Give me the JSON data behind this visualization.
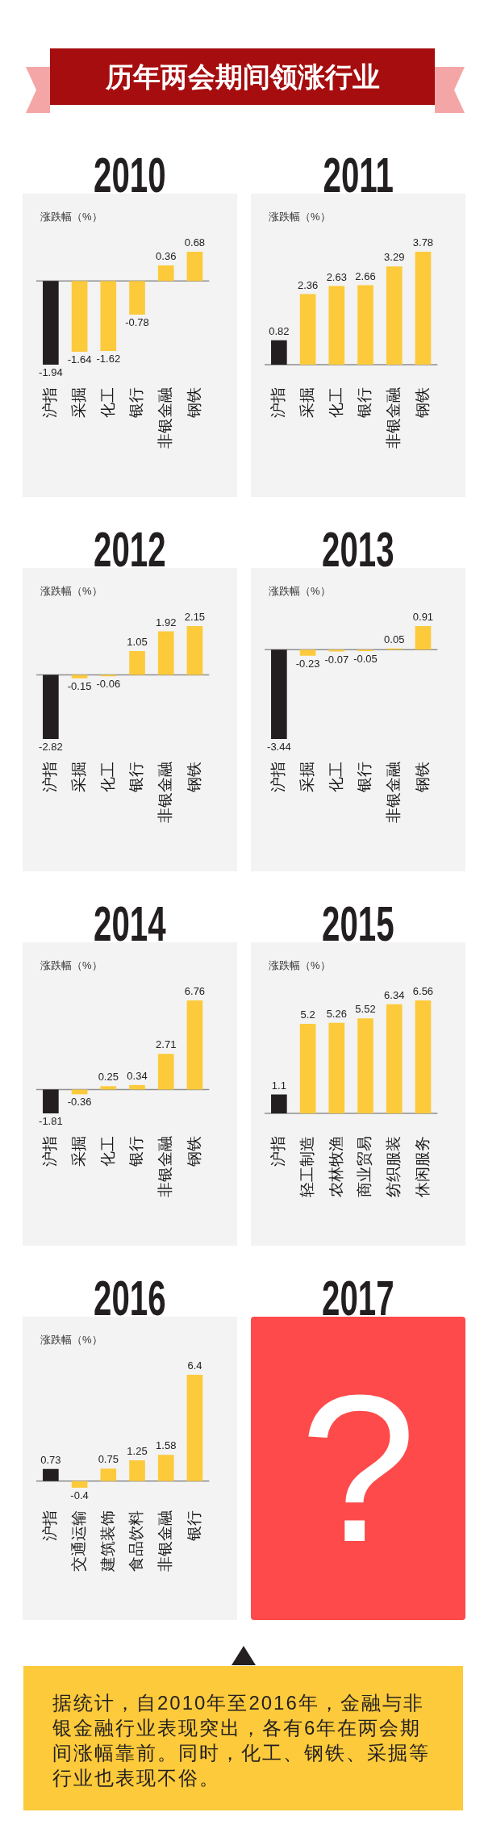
{
  "chart_data": [
    {
      "type": "other",
      "title": "历年两会期间领涨行业"
    },
    {
      "type": "bar",
      "title": "2010",
      "ylabel": "涨跌幅（%）",
      "categories": [
        "沪指",
        "采掘",
        "化工",
        "银行",
        "非银金融",
        "钢铁"
      ],
      "values": [
        -1.94,
        -1.64,
        -1.62,
        -0.78,
        0.36,
        0.68
      ],
      "colors": [
        "#231f20",
        "#fcca3a",
        "#fcca3a",
        "#fcca3a",
        "#fcca3a",
        "#fcca3a"
      ],
      "data_labels": true
    },
    {
      "type": "bar",
      "title": "2011",
      "ylabel": "涨跌幅（%）",
      "categories": [
        "沪指",
        "采掘",
        "化工",
        "银行",
        "非银金融",
        "钢铁"
      ],
      "values": [
        0.82,
        2.36,
        2.63,
        2.66,
        3.29,
        3.78
      ],
      "colors": [
        "#231f20",
        "#fcca3a",
        "#fcca3a",
        "#fcca3a",
        "#fcca3a",
        "#fcca3a"
      ],
      "data_labels": true
    },
    {
      "type": "bar",
      "title": "2012",
      "ylabel": "涨跌幅（%）",
      "categories": [
        "沪指",
        "采掘",
        "化工",
        "银行",
        "非银金融",
        "钢铁"
      ],
      "values": [
        -2.82,
        -0.15,
        -0.06,
        1.05,
        1.92,
        2.15
      ],
      "colors": [
        "#231f20",
        "#fcca3a",
        "#fcca3a",
        "#fcca3a",
        "#fcca3a",
        "#fcca3a"
      ],
      "data_labels": true
    },
    {
      "type": "bar",
      "title": "2013",
      "ylabel": "涨跌幅（%）",
      "categories": [
        "沪指",
        "采掘",
        "化工",
        "银行",
        "非银金融",
        "钢铁"
      ],
      "values": [
        -3.44,
        -0.23,
        -0.07,
        -0.05,
        0.05,
        0.91
      ],
      "colors": [
        "#231f20",
        "#fcca3a",
        "#fcca3a",
        "#fcca3a",
        "#fcca3a",
        "#fcca3a"
      ],
      "data_labels": true
    },
    {
      "type": "bar",
      "title": "2014",
      "ylabel": "涨跌幅（%）",
      "categories": [
        "沪指",
        "采掘",
        "化工",
        "银行",
        "非银金融",
        "钢铁"
      ],
      "values": [
        -1.81,
        -0.36,
        0.25,
        0.34,
        2.71,
        6.76
      ],
      "colors": [
        "#231f20",
        "#fcca3a",
        "#fcca3a",
        "#fcca3a",
        "#fcca3a",
        "#fcca3a"
      ],
      "data_labels": true
    },
    {
      "type": "bar",
      "title": "2015",
      "ylabel": "涨跌幅（%）",
      "categories": [
        "沪指",
        "轻工制造",
        "农林牧渔",
        "商业贸易",
        "纺织服装",
        "休闲服务"
      ],
      "values": [
        1.1,
        5.2,
        5.26,
        5.52,
        6.34,
        6.56
      ],
      "colors": [
        "#231f20",
        "#fcca3a",
        "#fcca3a",
        "#fcca3a",
        "#fcca3a",
        "#fcca3a"
      ],
      "data_labels": true
    },
    {
      "type": "bar",
      "title": "2016",
      "ylabel": "涨跌幅（%）",
      "categories": [
        "沪指",
        "交通运输",
        "建筑装饰",
        "食品饮料",
        "非银金融",
        "银行"
      ],
      "values": [
        0.73,
        -0.4,
        0.75,
        1.25,
        1.58,
        6.4
      ],
      "colors": [
        "#231f20",
        "#fcca3a",
        "#fcca3a",
        "#fcca3a",
        "#fcca3a",
        "#fcca3a"
      ],
      "data_labels": true
    },
    {
      "type": "other",
      "title": "2017",
      "annotations": [
        "?"
      ]
    },
    {
      "type": "other",
      "annotations": [
        "据统计，自2010年至2016年，金融与非银金融行业表现突出，各有6年在两会期间涨幅靠前。同时，化工、钢铁、采掘等行业也表现不俗。"
      ]
    }
  ]
}
